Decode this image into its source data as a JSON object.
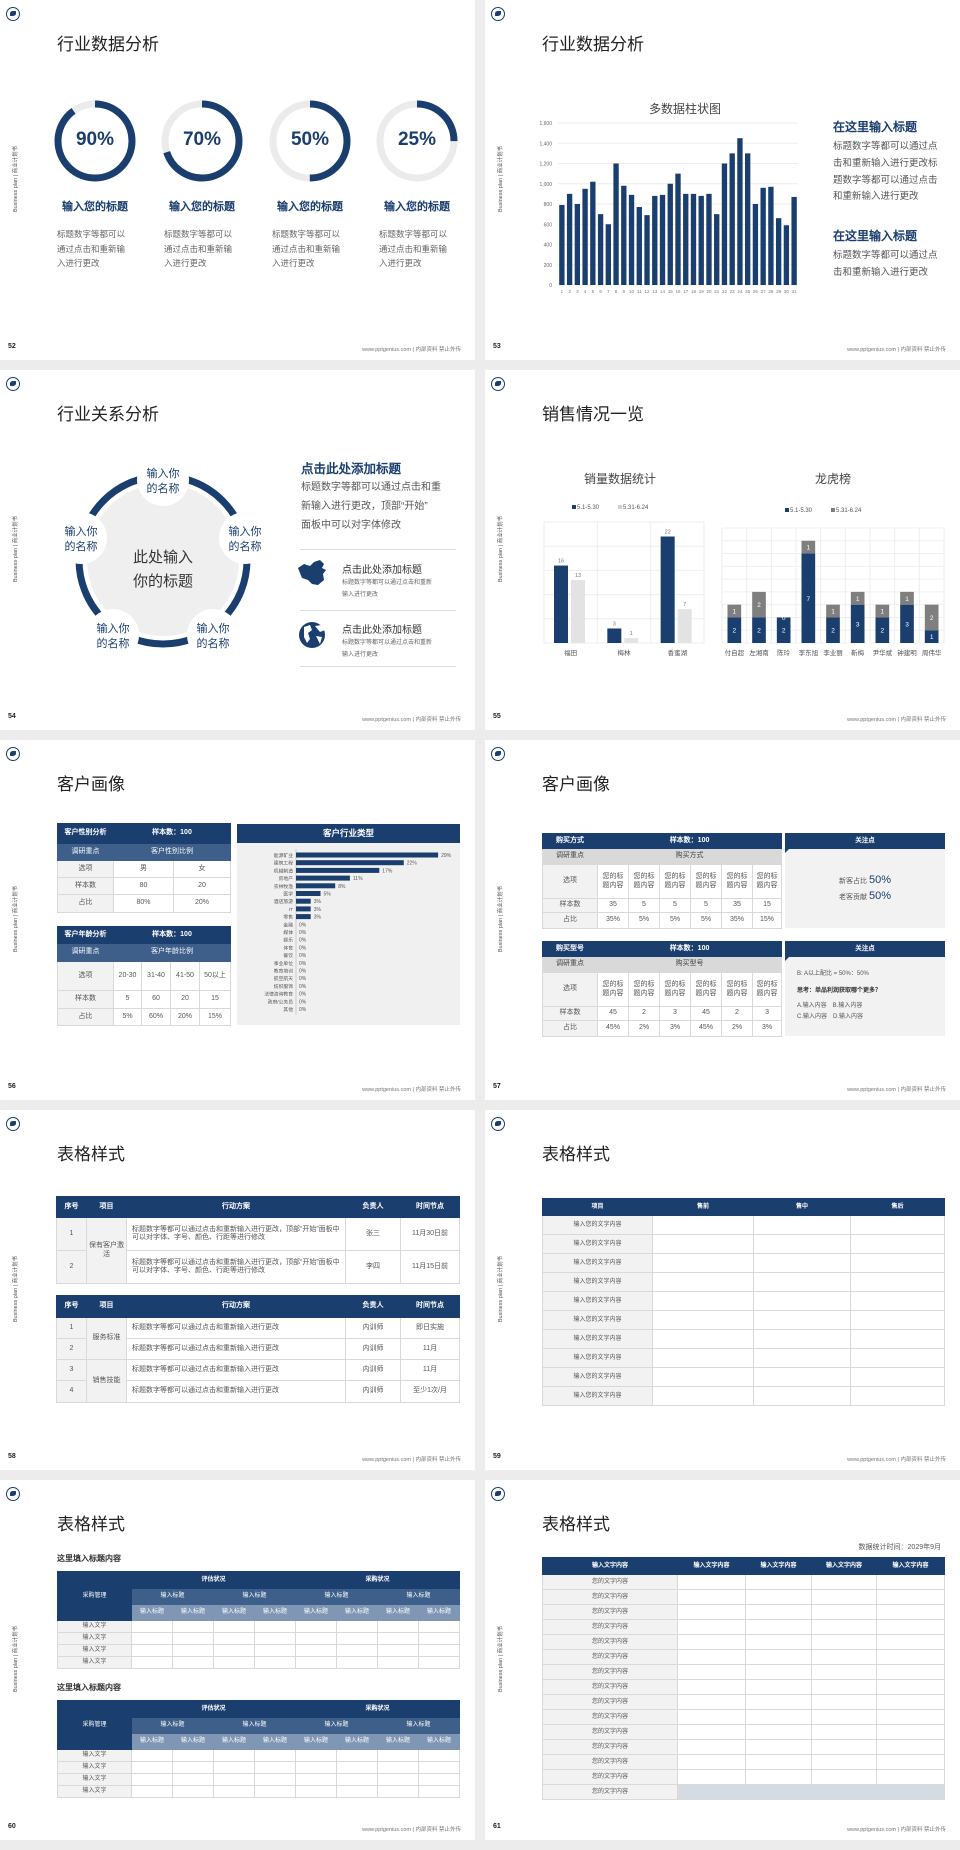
{
  "common": {
    "footer": "www.pptgenius.com | 内部资料 禁止外传",
    "side_text": "Business plan | 商业计划书"
  },
  "colors": {
    "navy": "#1a3e6e",
    "mid_blue": "#3d5f8a",
    "light_gray": "#e3e3e3",
    "dark_gray": "#7f7f7f",
    "ring_track": "#ebebeb"
  },
  "s52": {
    "page": "52",
    "title": "行业数据分析",
    "items": [
      {
        "pct": 90,
        "label": "90%",
        "heading": "输入您的标题",
        "lines": [
          "标题数字等都可以",
          "通过点击和重新输",
          "入进行更改"
        ]
      },
      {
        "pct": 70,
        "label": "70%",
        "heading": "输入您的标题",
        "lines": [
          "标题数字等都可以",
          "通过点击和重新输",
          "入进行更改"
        ]
      },
      {
        "pct": 50,
        "label": "50%",
        "heading": "输入您的标题",
        "lines": [
          "标题数字等都可以",
          "通过点击和重新输",
          "入进行更改"
        ]
      },
      {
        "pct": 25,
        "label": "25%",
        "heading": "输入您的标题",
        "lines": [
          "标题数字等都可以",
          "通过点击和重新输",
          "入进行更改"
        ]
      }
    ]
  },
  "s53": {
    "page": "53",
    "title": "行业数据分析",
    "blocks": [
      {
        "heading": "在这里输入标题",
        "lines": [
          "标题数字等都可以通过点",
          "击和重新输入进行更改标",
          "题数字等都可以通过点击",
          "和重新输入进行更改"
        ]
      },
      {
        "heading": "在这里输入标题",
        "lines": [
          "标题数字等都可以通过点",
          "击和重新输入进行更改"
        ]
      }
    ]
  },
  "s54": {
    "page": "54",
    "title": "行业关系分析",
    "center": [
      "此处输入",
      "你的标题"
    ],
    "nodes": [
      [
        "输入你",
        "的名称"
      ],
      [
        "输入你",
        "的名称"
      ],
      [
        "输入你",
        "的名称"
      ],
      [
        "输入你",
        "的名称"
      ],
      [
        "输入你",
        "的名称"
      ]
    ],
    "heading": "点击此处添加标题",
    "lines": [
      "标题数字等都可以通过点击和重",
      "新输入进行更改，顶部“开始”",
      "面板中可以对字体修改"
    ],
    "items": [
      {
        "icon": "china-map",
        "title": "点击此处添加标题",
        "lines": [
          "标题数字等都可以通过点击和重新",
          "输入进行更改"
        ]
      },
      {
        "icon": "globe",
        "title": "点击此处添加标题",
        "lines": [
          "标题数字等都可以通过点击和重新",
          "输入进行更改"
        ]
      }
    ]
  },
  "s55": {
    "page": "55",
    "title": "销售情况一览"
  },
  "s56": {
    "page": "56",
    "title": "客户画像",
    "t1": [
      {
        "type": "hd",
        "cells": [
          {
            "t": "客户性别分析"
          },
          {
            "t": "样本数：100",
            "cs": 2
          }
        ]
      },
      {
        "type": "sub",
        "cells": [
          {
            "t": "调研重点"
          },
          {
            "t": "客户性别比例",
            "cs": 2
          }
        ]
      },
      {
        "type": "body",
        "cells": [
          {
            "t": "选项"
          },
          {
            "t": "男"
          },
          {
            "t": "女"
          }
        ]
      },
      {
        "type": "body",
        "cells": [
          {
            "t": "样本数"
          },
          {
            "t": "80"
          },
          {
            "t": "20"
          }
        ]
      },
      {
        "type": "body",
        "cells": [
          {
            "t": "占比"
          },
          {
            "t": "80%"
          },
          {
            "t": "20%"
          }
        ]
      }
    ],
    "t2": [
      {
        "type": "hd",
        "cells": [
          {
            "t": "客户年龄分析"
          },
          {
            "t": "样本数：100",
            "cs": 4
          }
        ]
      },
      {
        "type": "sub",
        "cells": [
          {
            "t": "调研重点"
          },
          {
            "t": "客户年龄比例",
            "cs": 4
          }
        ]
      },
      {
        "type": "body",
        "cells": [
          {
            "t": "选项"
          },
          {
            "t": "20-30"
          },
          {
            "t": "31-40"
          },
          {
            "t": "41-50"
          },
          {
            "t": "50以上"
          }
        ]
      },
      {
        "type": "body",
        "cells": [
          {
            "t": "样本数"
          },
          {
            "t": "5"
          },
          {
            "t": "60"
          },
          {
            "t": "20"
          },
          {
            "t": "15"
          }
        ]
      },
      {
        "type": "body",
        "cells": [
          {
            "t": "占比"
          },
          {
            "t": "5%"
          },
          {
            "t": "60%"
          },
          {
            "t": "20%"
          },
          {
            "t": "15%"
          }
        ]
      }
    ],
    "panel_title": "客户行业类型"
  },
  "s57": {
    "page": "57",
    "title": "客户画像",
    "t1": [
      {
        "type": "hd",
        "cells": [
          {
            "t": "购买方式"
          },
          {
            "t": "样本数：100",
            "cs": 6
          }
        ]
      },
      {
        "type": "lsub",
        "cells": [
          {
            "t": "调研重点"
          },
          {
            "t": "购买方式",
            "cs": 6
          }
        ]
      },
      {
        "type": "body",
        "cells": [
          {
            "t": "选项"
          },
          {
            "t": "您的标题内容"
          },
          {
            "t": "您的标题内容"
          },
          {
            "t": "您的标题内容"
          },
          {
            "t": "您的标题内容"
          },
          {
            "t": "您的标题内容"
          },
          {
            "t": "您的标题内容"
          }
        ]
      },
      {
        "type": "body",
        "cells": [
          {
            "t": "样本数"
          },
          {
            "t": "35"
          },
          {
            "t": "5"
          },
          {
            "t": "5"
          },
          {
            "t": "5"
          },
          {
            "t": "35"
          },
          {
            "t": "15"
          }
        ]
      },
      {
        "type": "body",
        "cells": [
          {
            "t": "占比"
          },
          {
            "t": "35%"
          },
          {
            "t": "5%"
          },
          {
            "t": "5%"
          },
          {
            "t": "5%"
          },
          {
            "t": "35%"
          },
          {
            "t": "15%"
          }
        ]
      }
    ],
    "t2": [
      {
        "type": "hd",
        "cells": [
          {
            "t": "购买型号"
          },
          {
            "t": "样本数：100",
            "cs": 6
          }
        ]
      },
      {
        "type": "lsub",
        "cells": [
          {
            "t": "调研重点"
          },
          {
            "t": "购买型号",
            "cs": 6
          }
        ]
      },
      {
        "type": "body",
        "cells": [
          {
            "t": "选项"
          },
          {
            "t": "您的标题内容"
          },
          {
            "t": "您的标题内容"
          },
          {
            "t": "您的标题内容"
          },
          {
            "t": "您的标题内容"
          },
          {
            "t": "您的标题内容"
          },
          {
            "t": "您的标题内容"
          }
        ]
      },
      {
        "type": "body",
        "cells": [
          {
            "t": "样本数"
          },
          {
            "t": "45"
          },
          {
            "t": "2"
          },
          {
            "t": "3"
          },
          {
            "t": "45"
          },
          {
            "t": "2"
          },
          {
            "t": "3"
          }
        ]
      },
      {
        "type": "body",
        "cells": [
          {
            "t": "占比"
          },
          {
            "t": "45%"
          },
          {
            "t": "2%"
          },
          {
            "t": "3%"
          },
          {
            "t": "45%"
          },
          {
            "t": "2%"
          },
          {
            "t": "3%"
          }
        ]
      }
    ],
    "p1": {
      "title": "关注点",
      "l1": "新客占比",
      "v1": "50%",
      "l2": "老客贡献",
      "v2": "50%"
    },
    "p2": {
      "title": "关注点",
      "ratio": "B: A以上配比 = 50%：50%",
      "think": "思考：单品利润获取哪个更多？",
      "opt1": "A.输入内容　B.输入内容",
      "opt2": "C.输入内容　D.输入内容"
    }
  },
  "s58": {
    "page": "58",
    "title": "表格样式",
    "t1": [
      {
        "type": "hd",
        "cells": [
          {
            "t": "序号"
          },
          {
            "t": "项目"
          },
          {
            "t": "行动方案"
          },
          {
            "t": "负责人"
          },
          {
            "t": "时间节点"
          }
        ]
      },
      {
        "type": "body",
        "cells": [
          {
            "t": "1"
          },
          {
            "t": "保有客户激活",
            "rs": 2
          },
          {
            "t": "标题数字等都可以通过点击和重新输入进行更改，顶部“开始”面板中可以对字体、字号、颜色、行距等进行修改",
            "left": true
          },
          {
            "t": "张三"
          },
          {
            "t": "11月30日前"
          }
        ]
      },
      {
        "type": "body",
        "cells": [
          {
            "t": "2"
          },
          {
            "t": "标题数字等都可以通过点击和重新输入进行更改，顶部“开始”面板中可以对字体、字号、颜色、行距等进行修改",
            "left": true
          },
          {
            "t": "李四"
          },
          {
            "t": "11月15日前"
          }
        ]
      }
    ],
    "t2": [
      {
        "type": "hd",
        "cells": [
          {
            "t": "序号"
          },
          {
            "t": "项目"
          },
          {
            "t": "行动方案"
          },
          {
            "t": "负责人"
          },
          {
            "t": "时间节点"
          }
        ]
      },
      {
        "type": "body",
        "cells": [
          {
            "t": "1"
          },
          {
            "t": "服务标准",
            "rs": 2
          },
          {
            "t": "标题数字等都可以通过点击和重新输入进行更改",
            "left": true
          },
          {
            "t": "内训师"
          },
          {
            "t": "即日实施"
          }
        ]
      },
      {
        "type": "body",
        "cells": [
          {
            "t": "2"
          },
          {
            "t": "标题数字等都可以通过点击和重新输入进行更改",
            "left": true
          },
          {
            "t": "内训师"
          },
          {
            "t": "11月"
          }
        ]
      },
      {
        "type": "body",
        "cells": [
          {
            "t": "3"
          },
          {
            "t": "销售技能",
            "rs": 2
          },
          {
            "t": "标题数字等都可以通过点击和重新输入进行更改",
            "left": true
          },
          {
            "t": "内训师"
          },
          {
            "t": "11月"
          }
        ]
      },
      {
        "type": "body",
        "cells": [
          {
            "t": "4"
          },
          {
            "t": "标题数字等都可以通过点击和重新输入进行更改",
            "left": true
          },
          {
            "t": "内训师"
          },
          {
            "t": "至少1次/月"
          }
        ]
      }
    ]
  },
  "s59": {
    "page": "59",
    "title": "表格样式",
    "headers": [
      "项目",
      "售前",
      "售中",
      "售后"
    ],
    "row_label": "输入您的文字内容",
    "row_count": 10
  },
  "s60": {
    "page": "60",
    "title": "表格样式",
    "subtitle": "这里填入标题内容",
    "group1": "评估状况",
    "group2": "采购状况",
    "corner": "采购管理",
    "sub_label": "输入标题",
    "col_label": "输入标题",
    "row_label": "输入文字",
    "row_count": 4
  },
  "s61": {
    "page": "61",
    "title": "表格样式",
    "stat_time": "数据统计时间：2029年9月",
    "headers": [
      "输入文字内容",
      "输入文字内容",
      "输入文字内容",
      "输入文字内容",
      "输入文字内容"
    ],
    "row_label": "您的文字内容",
    "row_count": 15
  },
  "chart_data": [
    {
      "id": "s53",
      "type": "bar",
      "title": "多数据柱状图",
      "categories": [
        "1",
        "2",
        "3",
        "4",
        "5",
        "6",
        "7",
        "8",
        "9",
        "10",
        "11",
        "12",
        "13",
        "14",
        "15",
        "16",
        "17",
        "18",
        "19",
        "20",
        "21",
        "22",
        "23",
        "24",
        "25",
        "26",
        "27",
        "28",
        "29",
        "30",
        "31"
      ],
      "values": [
        790,
        900,
        800,
        950,
        1020,
        700,
        600,
        1200,
        980,
        890,
        770,
        690,
        880,
        890,
        1000,
        1100,
        900,
        900,
        880,
        900,
        700,
        1200,
        1300,
        1450,
        1300,
        800,
        960,
        970,
        660,
        590,
        870
      ],
      "ylim": [
        0,
        1600
      ],
      "yticks": [
        "0",
        "200",
        "400",
        "600",
        "800",
        "1,000",
        "1,200",
        "1,400",
        "1,600"
      ],
      "grid": true,
      "color": "#1a3e6e"
    },
    {
      "id": "s55a",
      "type": "bar",
      "title": "销量数据统计",
      "categories": [
        "福田",
        "梅林",
        "香蜜湖"
      ],
      "series": [
        {
          "name": "5.1-5.30",
          "values": [
            16,
            3,
            22
          ],
          "color": "#1a3e6e"
        },
        {
          "name": "5.31-6.24",
          "values": [
            13,
            1,
            7
          ],
          "color": "#e3e3e3"
        }
      ],
      "ylim": [
        0,
        25
      ],
      "legend": "top",
      "grid": true
    },
    {
      "id": "s55b",
      "type": "bar",
      "stacked": true,
      "title": "龙虎榜",
      "categories": [
        "付自超",
        "左湘南",
        "陈玲",
        "李东旭",
        "李业丽",
        "靳梅",
        "尹华斌",
        "钟建明",
        "周伟华"
      ],
      "series": [
        {
          "name": "5.1-5.30",
          "values": [
            2,
            2,
            2,
            7,
            2,
            3,
            2,
            3,
            1
          ],
          "color": "#1a3e6e"
        },
        {
          "name": "5.31-6.24",
          "values": [
            1,
            2,
            0,
            1,
            1,
            1,
            1,
            1,
            2
          ],
          "color": "#7f7f7f"
        }
      ],
      "ylim": [
        0,
        9
      ],
      "legend": "top",
      "grid": true
    },
    {
      "id": "s56",
      "type": "bar",
      "orientation": "horizontal",
      "title": "客户行业类型",
      "categories": [
        "能源矿业",
        "建筑工程",
        "机械制造",
        "房地产",
        "农林牧渔",
        "医学",
        "酒店旅游",
        "IT",
        "零售",
        "金融",
        "媒体",
        "娱乐",
        "体育",
        "餐饮",
        "事业单位",
        "教育培训",
        "航空航天",
        "纺织服饰",
        "法律咨询教育",
        "政府/公务员",
        "其他"
      ],
      "values": [
        29,
        22,
        17,
        11,
        8,
        5,
        3,
        3,
        3,
        0,
        0,
        0,
        0,
        0,
        0,
        0,
        0,
        0,
        0,
        0,
        0
      ],
      "unit": "%",
      "color": "#1a3e6e"
    }
  ]
}
